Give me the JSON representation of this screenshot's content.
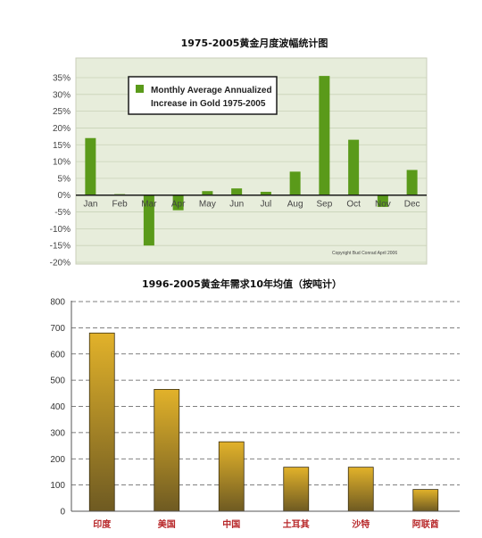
{
  "chart_data": [
    {
      "type": "bar",
      "title": "1975-2005黄金月度波幅统计图",
      "legend": "Monthly Average Annualized Increase in Gold 1975-2005",
      "legend_lines": [
        "Monthly Average Annualized",
        "Increase in Gold 1975-2005"
      ],
      "legend_position": "top-left",
      "copyright": "Copyright Bud Conrad April 2006",
      "categories": [
        "Jan",
        "Feb",
        "Mar",
        "Apr",
        "May",
        "Jun",
        "Jul",
        "Aug",
        "Sep",
        "Oct",
        "Nov",
        "Dec"
      ],
      "values": [
        17,
        0.3,
        -15,
        -4.5,
        1.2,
        2,
        1,
        7,
        35.5,
        16.5,
        -3.5,
        7.5
      ],
      "ylim": [
        -20,
        35
      ],
      "yticks": [
        "35%",
        "30%",
        "25%",
        "20%",
        "15%",
        "10%",
        "5%",
        "0%",
        "-5%",
        "-10%",
        "-15%",
        "-20%"
      ],
      "ytick_values": [
        35,
        30,
        25,
        20,
        15,
        10,
        5,
        0,
        -5,
        -10,
        -15,
        -20
      ],
      "grid": true,
      "bar_color": "#5a9a1a",
      "background_color": "#e7eddb"
    },
    {
      "type": "bar",
      "title": "1996-2005黄金年需求10年均值（按吨计）",
      "categories": [
        "印度",
        "美国",
        "中国",
        "土耳其",
        "沙特",
        "阿联酋"
      ],
      "values": [
        680,
        465,
        265,
        168,
        168,
        83
      ],
      "ylim": [
        0,
        800
      ],
      "yticks": [
        "0",
        "100",
        "200",
        "300",
        "400",
        "500",
        "600",
        "700",
        "800"
      ],
      "ytick_values": [
        0,
        100,
        200,
        300,
        400,
        500,
        600,
        700,
        800
      ],
      "grid": true,
      "bar_color_top": "#e2b22a",
      "bar_color_bottom": "#6e5a22",
      "category_color": "#b8282a"
    }
  ]
}
